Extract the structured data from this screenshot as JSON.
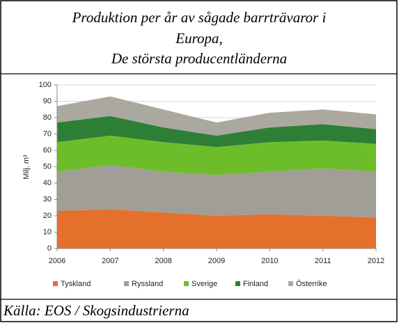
{
  "chart_data": {
    "type": "stacked_area",
    "title_lines": [
      "Produktion per år av sågade barrträvaror i",
      "Europa,",
      "De största producentländerna"
    ],
    "ylabel": "Milj. m³",
    "source": "Källa: EOS / Skogsindustrierna",
    "x": [
      2006,
      2007,
      2008,
      2009,
      2010,
      2011,
      2012
    ],
    "xlim": [
      2006,
      2012
    ],
    "xticks": [
      2006,
      2007,
      2008,
      2009,
      2010,
      2011,
      2012
    ],
    "ylim": [
      0,
      100
    ],
    "yticks": [
      0,
      10,
      20,
      30,
      40,
      50,
      60,
      70,
      80,
      90,
      100
    ],
    "grid": true,
    "legend": "bottom",
    "series": [
      {
        "name": "Tyskland",
        "color": "#e5702b",
        "values": [
          23,
          24,
          22,
          20,
          21,
          20,
          19
        ]
      },
      {
        "name": "Ryssland",
        "color": "#a09e96",
        "values": [
          24,
          27,
          25,
          25,
          26,
          29,
          28
        ]
      },
      {
        "name": "Sverige",
        "color": "#6dbd2a",
        "values": [
          18,
          18,
          18,
          17,
          18,
          17,
          17
        ]
      },
      {
        "name": "Finland",
        "color": "#2d7f35",
        "values": [
          12,
          12,
          9,
          7,
          9,
          10,
          9
        ]
      },
      {
        "name": "Österrike",
        "color": "#aba89f",
        "values": [
          10,
          12,
          11,
          8,
          9,
          9,
          9
        ]
      }
    ]
  }
}
